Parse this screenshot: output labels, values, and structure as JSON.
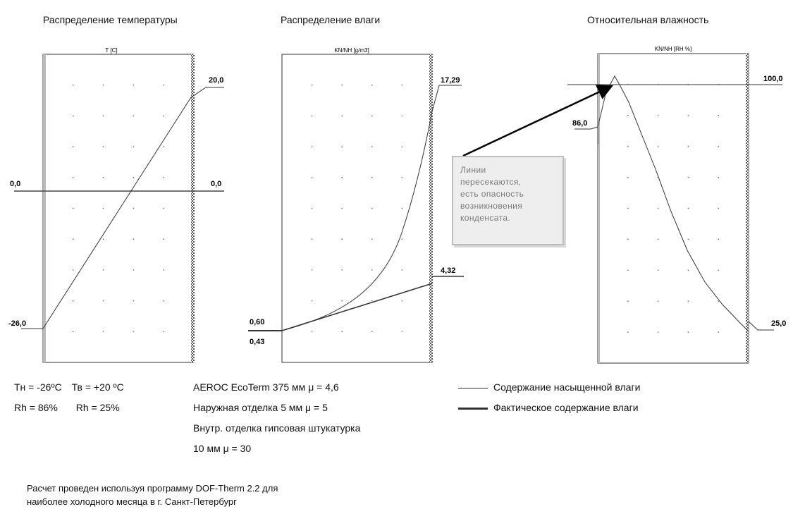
{
  "chart_data": [
    {
      "type": "line",
      "title": "Распределение температуры",
      "ylabel": "T [C]",
      "ylim": [
        -26,
        20
      ],
      "series": [
        {
          "name": "",
          "values": [
            [
              -26.0,
              -26.0
            ],
            [
              20.0,
              20.0
            ]
          ]
        }
      ],
      "labels": {
        "left_top": "",
        "left_mid": "0,0",
        "left_bottom": "-26,0",
        "right_top": "20,0",
        "right_mid": "0,0"
      }
    },
    {
      "type": "line",
      "title": "Распределение влаги",
      "ylabel": "KN/NH [g/m3]",
      "ylim": [
        0,
        17.29
      ],
      "series": [
        {
          "name": "Содержание насыщенной влаги",
          "values": [
            [
              0.0,
              0.43
            ],
            [
              0.15,
              1.2
            ],
            [
              0.3,
              2.4
            ],
            [
              0.45,
              4.0
            ],
            [
              0.6,
              6.3
            ],
            [
              0.75,
              9.0
            ],
            [
              0.88,
              12.5
            ],
            [
              0.95,
              15.0
            ],
            [
              1.0,
              17.29
            ]
          ]
        },
        {
          "name": "Фактическое содержание влаги",
          "values": [
            [
              0.0,
              0.43
            ],
            [
              1.0,
              4.32
            ]
          ]
        }
      ],
      "labels": {
        "left_upper": "0,60",
        "left_lower": "0,43",
        "right_top": "17,29",
        "right_mid": "4,32"
      }
    },
    {
      "type": "line",
      "title": "Относительная влажность",
      "ylabel": "KN/NH [RH %]",
      "ylim": [
        25,
        100
      ],
      "series": [
        {
          "name": "",
          "values": [
            [
              0.0,
              86.0
            ],
            [
              0.02,
              95.0
            ],
            [
              0.1,
              100.0
            ],
            [
              0.2,
              92.0
            ],
            [
              0.35,
              78.0
            ],
            [
              0.5,
              62.0
            ],
            [
              0.65,
              48.0
            ],
            [
              0.8,
              36.0
            ],
            [
              1.0,
              25.0
            ]
          ]
        }
      ],
      "labels": {
        "left_mid": "86,0",
        "right_top": "100,0",
        "right_bottom": "25,0"
      }
    }
  ],
  "annotation": {
    "lines": [
      "Линии",
      "пересекаются,",
      "есть опасность",
      "возникновения",
      "конденсата."
    ]
  },
  "conditions": {
    "tn": "Тн = -26ºС",
    "tv": "Тв = +20 ºС",
    "rh_out": "Rh = 86%",
    "rh_in": "Rh = 25%"
  },
  "construction": {
    "line1": "AEROC EcoTerm 375 мм μ = 4,6",
    "line2": "Наружная отделка 5  мм μ = 5",
    "line3": "Внутр. отделка гипсовая штукатурка",
    "line4": "10 мм μ = 30"
  },
  "legend": {
    "saturated": "Содержание насыщенной влаги",
    "actual": "Фактическое содержание влаги"
  },
  "footer": {
    "line1": "Расчет проведен используя программу DOF-Therm 2.2 для",
    "line2": "наиболее холодного месяца в г. Санкт-Петербург"
  }
}
